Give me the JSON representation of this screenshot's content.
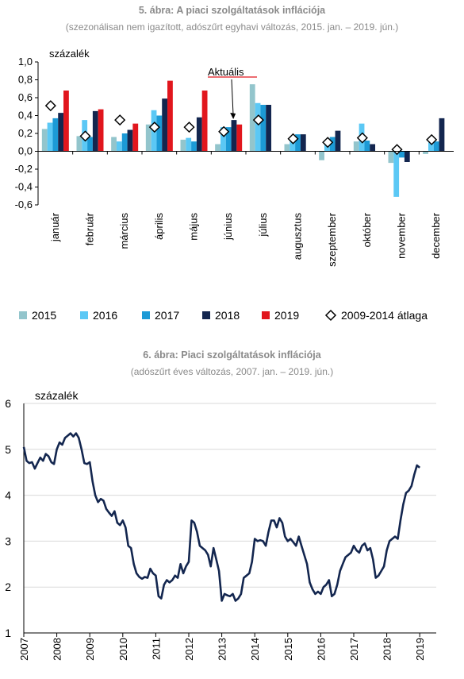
{
  "chart_data": [
    {
      "type": "bar",
      "title": "5. ábra: A piaci szolgáltatások inflációja",
      "subtitle": "(szezonálisan nem igazított, adószűrt egyhavi változás, 2015. jan. – 2019. jún.)",
      "ylabel": "százalék",
      "ylim": [
        -0.6,
        1.0
      ],
      "yticks": [
        "1,0",
        "0,8",
        "0,6",
        "0,4",
        "0,2",
        "0,0",
        "-0,2",
        "-0,4",
        "-0,6"
      ],
      "categories": [
        "január",
        "február",
        "március",
        "április",
        "május",
        "június",
        "július",
        "augusztus",
        "szeptember",
        "október",
        "november",
        "december"
      ],
      "series": [
        {
          "name": "2015",
          "color": "#93c5cc",
          "values": [
            0.25,
            0.17,
            0.16,
            0.3,
            0.13,
            0.08,
            0.75,
            0.08,
            -0.1,
            0.11,
            -0.13,
            -0.03
          ]
        },
        {
          "name": "2016",
          "color": "#5bc8f5",
          "values": [
            0.32,
            0.35,
            0.11,
            0.46,
            0.15,
            0.27,
            0.54,
            0.12,
            0.11,
            0.31,
            -0.51,
            0.1
          ]
        },
        {
          "name": "2017",
          "color": "#1c9ad6",
          "values": [
            0.37,
            0.16,
            0.2,
            0.4,
            0.11,
            0.27,
            0.52,
            0.19,
            0.16,
            0.12,
            -0.07,
            0.11
          ]
        },
        {
          "name": "2018",
          "color": "#13264f",
          "values": [
            0.43,
            0.45,
            0.24,
            0.59,
            0.38,
            0.35,
            0.52,
            0.19,
            0.23,
            0.08,
            -0.12,
            0.37
          ]
        },
        {
          "name": "2019",
          "color": "#e1161d",
          "values": [
            0.68,
            0.47,
            0.31,
            0.79,
            0.68,
            0.3,
            null,
            null,
            null,
            null,
            null,
            null
          ]
        }
      ],
      "markers": {
        "name": "2009-2014 átlaga",
        "values": [
          0.51,
          0.17,
          0.35,
          0.27,
          0.27,
          0.22,
          0.35,
          0.14,
          0.1,
          0.15,
          0.02,
          0.13
        ]
      },
      "annotation": "Aktuális",
      "legend_position": "bottom"
    },
    {
      "type": "line",
      "title": "6. ábra: Piaci szolgáltatások inflációja",
      "subtitle": "(adószűrt éves változás, 2007. jan. – 2019. jún.)",
      "ylabel": "százalék",
      "ylim": [
        1,
        6
      ],
      "yticks": [
        "6",
        "5",
        "4",
        "3",
        "2",
        "1"
      ],
      "xticks": [
        "2007",
        "2008",
        "2009",
        "2010",
        "2011",
        "2012",
        "2013",
        "2014",
        "2015",
        "2016",
        "2017",
        "2018",
        "2019"
      ],
      "grid": true,
      "series": [
        {
          "name": "",
          "color": "#13264f",
          "start": "2007-01",
          "values": [
            5.05,
            4.75,
            4.7,
            4.72,
            4.58,
            4.7,
            4.82,
            4.75,
            4.9,
            4.85,
            4.72,
            4.68,
            5.0,
            5.15,
            5.1,
            5.25,
            5.3,
            5.35,
            5.28,
            5.35,
            5.25,
            5.0,
            4.7,
            4.68,
            4.72,
            4.3,
            4.0,
            3.85,
            3.92,
            3.88,
            3.7,
            3.62,
            3.55,
            3.65,
            3.4,
            3.35,
            3.45,
            3.3,
            2.9,
            2.85,
            2.5,
            2.3,
            2.22,
            2.18,
            2.22,
            2.2,
            2.4,
            2.3,
            2.25,
            1.8,
            1.75,
            2.05,
            2.15,
            2.1,
            2.15,
            2.25,
            2.2,
            2.5,
            2.3,
            2.45,
            2.55,
            3.45,
            3.4,
            3.2,
            2.9,
            2.85,
            2.8,
            2.7,
            2.45,
            2.85,
            2.6,
            2.35,
            1.7,
            1.85,
            1.82,
            1.8,
            1.85,
            1.7,
            1.75,
            1.85,
            2.2,
            2.25,
            2.3,
            2.55,
            3.05,
            3.0,
            3.02,
            3.0,
            2.9,
            3.2,
            3.45,
            3.45,
            3.3,
            3.5,
            3.4,
            3.1,
            3.0,
            3.05,
            2.98,
            2.9,
            3.1,
            2.9,
            2.7,
            2.5,
            2.1,
            1.95,
            1.85,
            1.9,
            1.85,
            2.0,
            2.05,
            2.15,
            1.8,
            1.85,
            2.05,
            2.35,
            2.5,
            2.65,
            2.7,
            2.75,
            2.9,
            2.8,
            2.75,
            2.9,
            2.95,
            2.8,
            2.85,
            2.6,
            2.2,
            2.25,
            2.35,
            2.45,
            2.8,
            3.0,
            3.05,
            3.1,
            3.05,
            3.45,
            3.8,
            4.05,
            4.1,
            4.2,
            4.45,
            4.65,
            4.6
          ]
        }
      ]
    }
  ]
}
